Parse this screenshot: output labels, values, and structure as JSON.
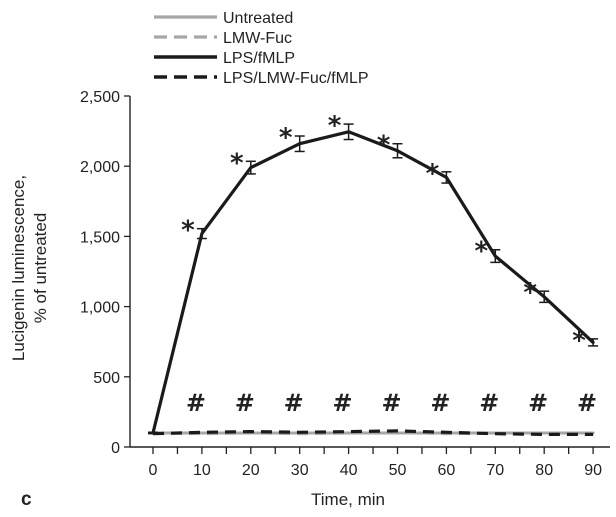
{
  "panel_label": "c",
  "chart_data": {
    "type": "line",
    "xlabel": "Time, min",
    "ylabel_lines": [
      "Lucigenin luminescence,",
      "% of untreated"
    ],
    "x": [
      0,
      10,
      20,
      30,
      40,
      50,
      60,
      70,
      80,
      90
    ],
    "x_ticks": [
      "0",
      "10",
      "20",
      "30",
      "40",
      "50",
      "60",
      "70",
      "80",
      "90"
    ],
    "y_ticks": [
      "0",
      "500",
      "1,000",
      "1,500",
      "2,000",
      "2,500"
    ],
    "xlim": [
      -5,
      93
    ],
    "ylim": [
      0,
      2500
    ],
    "legend_position": "top-left",
    "series": [
      {
        "name": "Untreated",
        "color": "#a6a6a6",
        "dash": "solid",
        "values": [
          100,
          100,
          100,
          100,
          100,
          100,
          100,
          100,
          100,
          100
        ]
      },
      {
        "name": "LMW-Fuc",
        "color": "#a6a6a6",
        "dash": "dashed",
        "values": [
          100,
          95,
          100,
          95,
          100,
          105,
          95,
          100,
          95,
          95
        ]
      },
      {
        "name": "LPS/fMLP",
        "color": "#1a1a1a",
        "dash": "solid",
        "values": [
          100,
          1520,
          1990,
          2160,
          2245,
          2110,
          1920,
          1360,
          1070,
          745
        ],
        "errors": [
          5,
          35,
          45,
          55,
          55,
          50,
          40,
          45,
          40,
          25
        ],
        "markers": [
          "",
          "*",
          "*",
          "*",
          "*",
          "*",
          "*",
          "*",
          "*",
          "*"
        ]
      },
      {
        "name": "LPS/LMW-Fuc/fMLP",
        "color": "#1a1a1a",
        "dash": "dashed",
        "values": [
          95,
          105,
          110,
          105,
          110,
          115,
          105,
          95,
          90,
          90
        ],
        "markers": [
          "",
          "#",
          "#",
          "#",
          "#",
          "#",
          "#",
          "#",
          "#",
          "#"
        ]
      }
    ]
  }
}
